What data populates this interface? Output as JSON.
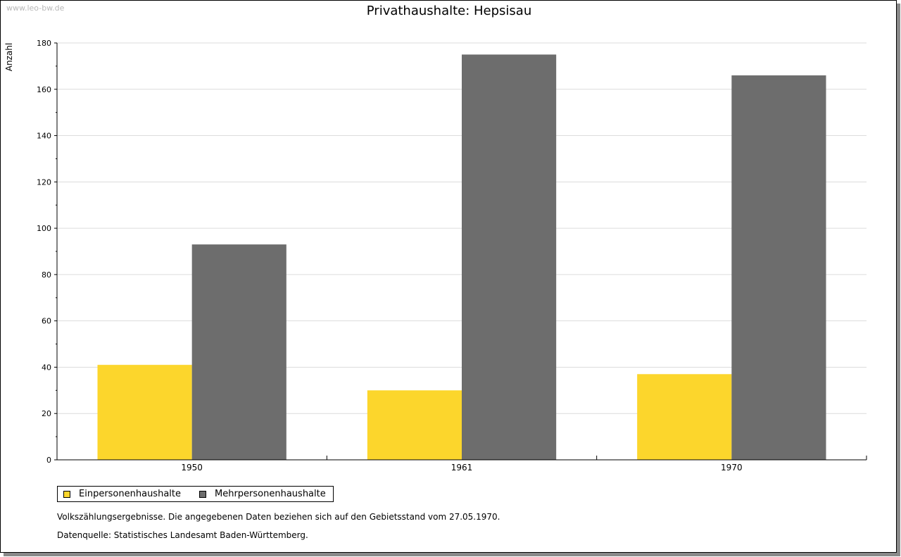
{
  "watermark": "www.leo-bw.de",
  "chart_data": {
    "type": "bar",
    "title": "Privathaushalte: Hepsisau",
    "ylabel": "Anzahl",
    "xlabel": "",
    "categories": [
      "1950",
      "1961",
      "1970"
    ],
    "series": [
      {
        "name": "Einpersonenhaushalte",
        "color": "#fcd62c",
        "values": [
          41,
          30,
          37
        ]
      },
      {
        "name": "Mehrpersonenhaushalte",
        "color": "#6d6d6d",
        "values": [
          93,
          175,
          166
        ]
      }
    ],
    "ylim": [
      0,
      180
    ],
    "yticks": [
      0,
      20,
      40,
      60,
      80,
      100,
      120,
      140,
      160,
      180
    ],
    "grid": true,
    "legend": "bottom-left"
  },
  "notes": {
    "line1": "Volkszählungsergebnisse. Die angegebenen Daten beziehen sich auf den Gebietsstand vom 27.05.1970.",
    "line2": "Datenquelle: Statistisches Landesamt Baden-Württemberg."
  }
}
